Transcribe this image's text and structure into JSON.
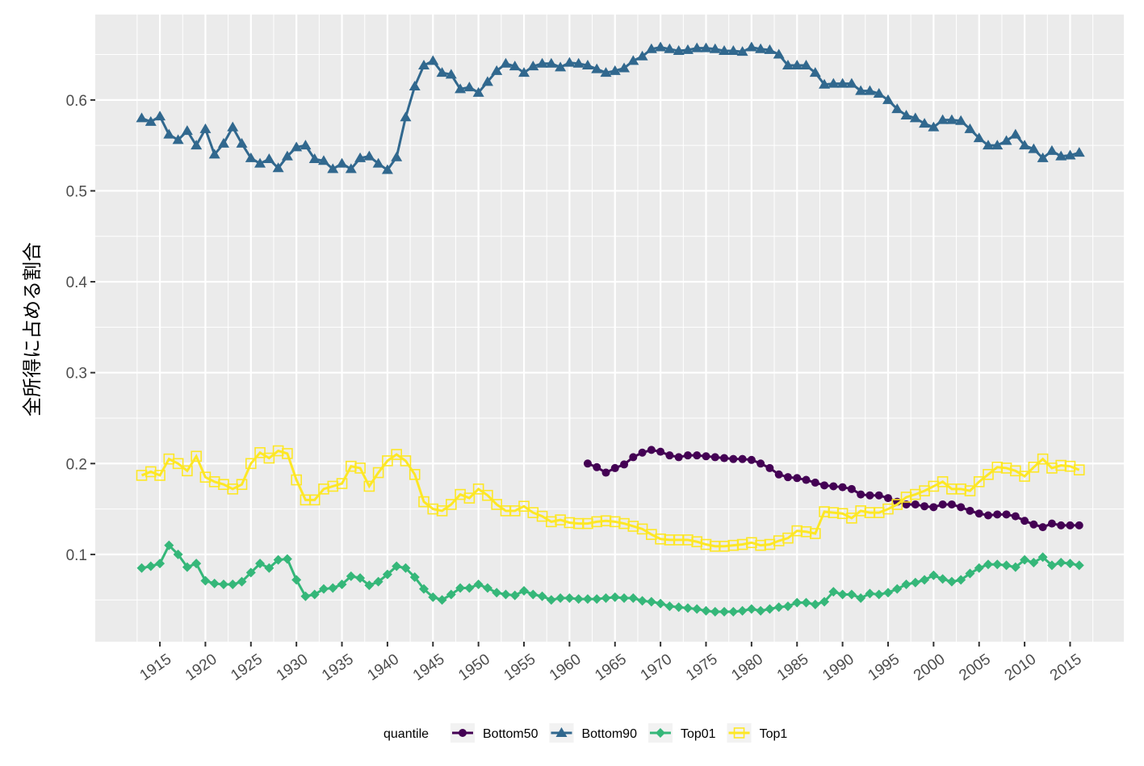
{
  "chart_data": {
    "type": "line",
    "y_label": "全所得に占める割合",
    "legend_title": "quantile",
    "x": [
      1913,
      1914,
      1915,
      1916,
      1917,
      1918,
      1919,
      1920,
      1921,
      1922,
      1923,
      1924,
      1925,
      1926,
      1927,
      1928,
      1929,
      1930,
      1931,
      1932,
      1933,
      1934,
      1935,
      1936,
      1937,
      1938,
      1939,
      1940,
      1941,
      1942,
      1943,
      1944,
      1945,
      1946,
      1947,
      1948,
      1949,
      1950,
      1951,
      1952,
      1953,
      1954,
      1955,
      1956,
      1957,
      1958,
      1959,
      1960,
      1961,
      1962,
      1963,
      1964,
      1965,
      1966,
      1967,
      1968,
      1969,
      1970,
      1971,
      1972,
      1973,
      1974,
      1975,
      1976,
      1977,
      1978,
      1979,
      1980,
      1981,
      1982,
      1983,
      1984,
      1985,
      1986,
      1987,
      1988,
      1989,
      1990,
      1991,
      1992,
      1993,
      1994,
      1995,
      1996,
      1997,
      1998,
      1999,
      2000,
      2001,
      2002,
      2003,
      2004,
      2005,
      2006,
      2007,
      2008,
      2009,
      2010,
      2011,
      2012,
      2013,
      2014,
      2015,
      2016
    ],
    "series": [
      {
        "name": "Bottom50",
        "color": "#440154",
        "marker": "circle",
        "values": [
          null,
          null,
          null,
          null,
          null,
          null,
          null,
          null,
          null,
          null,
          null,
          null,
          null,
          null,
          null,
          null,
          null,
          null,
          null,
          null,
          null,
          null,
          null,
          null,
          null,
          null,
          null,
          null,
          null,
          null,
          null,
          null,
          null,
          null,
          null,
          null,
          null,
          null,
          null,
          null,
          null,
          null,
          null,
          null,
          null,
          null,
          null,
          null,
          null,
          0.2,
          0.196,
          0.19,
          0.195,
          0.199,
          0.207,
          0.212,
          0.215,
          0.213,
          0.209,
          0.207,
          0.209,
          0.209,
          0.208,
          0.207,
          0.206,
          0.205,
          0.205,
          0.204,
          0.2,
          0.195,
          0.188,
          0.185,
          0.184,
          0.182,
          0.179,
          0.176,
          0.175,
          0.174,
          0.172,
          0.166,
          0.165,
          0.165,
          0.162,
          0.158,
          0.155,
          0.155,
          0.153,
          0.152,
          0.155,
          0.155,
          0.152,
          0.148,
          0.145,
          0.143,
          0.144,
          0.144,
          0.142,
          0.137,
          0.133,
          0.13,
          0.134,
          0.132,
          0.132,
          0.132
        ]
      },
      {
        "name": "Bottom90",
        "color": "#31688E",
        "marker": "triangle",
        "values": [
          0.58,
          0.576,
          0.582,
          0.562,
          0.556,
          0.566,
          0.55,
          0.568,
          0.54,
          0.552,
          0.57,
          0.552,
          0.536,
          0.53,
          0.535,
          0.525,
          0.538,
          0.548,
          0.55,
          0.535,
          0.533,
          0.524,
          0.53,
          0.524,
          0.536,
          0.538,
          0.53,
          0.523,
          0.537,
          0.581,
          0.615,
          0.638,
          0.643,
          0.63,
          0.628,
          0.612,
          0.614,
          0.608,
          0.62,
          0.632,
          0.64,
          0.637,
          0.63,
          0.637,
          0.64,
          0.64,
          0.636,
          0.641,
          0.64,
          0.638,
          0.634,
          0.63,
          0.632,
          0.635,
          0.643,
          0.648,
          0.656,
          0.658,
          0.656,
          0.654,
          0.655,
          0.657,
          0.657,
          0.656,
          0.654,
          0.654,
          0.653,
          0.658,
          0.656,
          0.655,
          0.65,
          0.638,
          0.638,
          0.638,
          0.63,
          0.617,
          0.618,
          0.618,
          0.618,
          0.61,
          0.61,
          0.607,
          0.6,
          0.59,
          0.583,
          0.58,
          0.574,
          0.57,
          0.578,
          0.578,
          0.577,
          0.568,
          0.558,
          0.55,
          0.55,
          0.555,
          0.562,
          0.55,
          0.546,
          0.536,
          0.544,
          0.538,
          0.539,
          0.542
        ]
      },
      {
        "name": "Top01",
        "color": "#35B779",
        "marker": "diamond",
        "values": [
          0.085,
          0.087,
          0.09,
          0.11,
          0.1,
          0.086,
          0.09,
          0.071,
          0.068,
          0.067,
          0.067,
          0.07,
          0.08,
          0.09,
          0.085,
          0.094,
          0.095,
          0.072,
          0.054,
          0.056,
          0.062,
          0.063,
          0.067,
          0.076,
          0.074,
          0.066,
          0.07,
          0.078,
          0.087,
          0.085,
          0.075,
          0.062,
          0.053,
          0.05,
          0.056,
          0.063,
          0.063,
          0.067,
          0.063,
          0.058,
          0.056,
          0.055,
          0.06,
          0.056,
          0.054,
          0.05,
          0.052,
          0.052,
          0.051,
          0.051,
          0.051,
          0.052,
          0.053,
          0.052,
          0.052,
          0.049,
          0.048,
          0.046,
          0.043,
          0.042,
          0.041,
          0.04,
          0.038,
          0.037,
          0.037,
          0.037,
          0.038,
          0.04,
          0.038,
          0.04,
          0.042,
          0.043,
          0.047,
          0.047,
          0.045,
          0.048,
          0.059,
          0.056,
          0.056,
          0.052,
          0.057,
          0.056,
          0.058,
          0.062,
          0.067,
          0.069,
          0.072,
          0.077,
          0.073,
          0.07,
          0.072,
          0.079,
          0.085,
          0.089,
          0.089,
          0.088,
          0.086,
          0.094,
          0.091,
          0.097,
          0.088,
          0.091,
          0.09,
          0.088
        ]
      },
      {
        "name": "Top1",
        "color": "#FDE725",
        "marker": "square",
        "values": [
          0.187,
          0.191,
          0.187,
          0.205,
          0.2,
          0.192,
          0.208,
          0.185,
          0.18,
          0.177,
          0.172,
          0.177,
          0.2,
          0.212,
          0.206,
          0.214,
          0.211,
          0.182,
          0.16,
          0.16,
          0.172,
          0.175,
          0.178,
          0.197,
          0.195,
          0.175,
          0.19,
          0.203,
          0.21,
          0.203,
          0.188,
          0.158,
          0.15,
          0.148,
          0.155,
          0.166,
          0.162,
          0.172,
          0.165,
          0.155,
          0.148,
          0.148,
          0.153,
          0.146,
          0.142,
          0.136,
          0.138,
          0.135,
          0.134,
          0.134,
          0.136,
          0.137,
          0.136,
          0.134,
          0.131,
          0.128,
          0.122,
          0.117,
          0.116,
          0.116,
          0.116,
          0.114,
          0.111,
          0.109,
          0.109,
          0.11,
          0.111,
          0.113,
          0.11,
          0.111,
          0.115,
          0.118,
          0.126,
          0.125,
          0.123,
          0.147,
          0.146,
          0.145,
          0.14,
          0.148,
          0.146,
          0.146,
          0.15,
          0.155,
          0.163,
          0.166,
          0.17,
          0.175,
          0.18,
          0.172,
          0.172,
          0.17,
          0.18,
          0.188,
          0.196,
          0.195,
          0.192,
          0.186,
          0.196,
          0.205,
          0.195,
          0.198,
          0.197,
          0.193
        ]
      }
    ],
    "xlim": [
      1907.9,
      2020.9
    ],
    "xticks": [
      1915,
      1920,
      1925,
      1930,
      1935,
      1940,
      1945,
      1950,
      1955,
      1960,
      1965,
      1970,
      1975,
      1980,
      1985,
      1990,
      1995,
      2000,
      2005,
      2010,
      2015
    ],
    "ylim": [
      0.004,
      0.694
    ],
    "yticks": [
      0.1,
      0.2,
      0.3,
      0.4,
      0.5,
      0.6
    ],
    "grid": true,
    "legend_position": "bottom"
  }
}
